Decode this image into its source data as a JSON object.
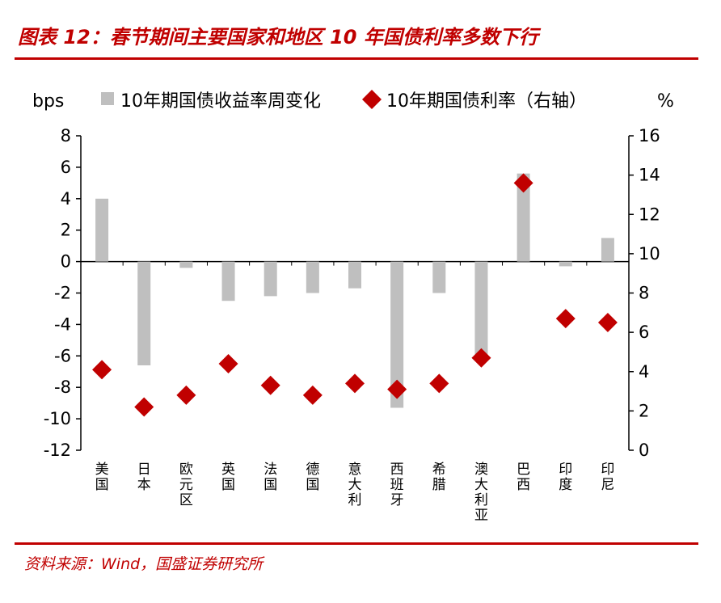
{
  "title": "图表 12：春节期间主要国家和地区 10 年国债利率多数下行",
  "source": "资料来源：Wind，国盛证券研究所",
  "colors": {
    "accent": "#c00000",
    "bar": "#bfbfbf",
    "marker": "#c00000"
  },
  "chart_data": {
    "type": "bar",
    "left_unit": "bps",
    "right_unit": "%",
    "categories": [
      "美国",
      "日本",
      "欧元区",
      "英国",
      "法国",
      "德国",
      "意大利",
      "西班牙",
      "希腊",
      "澳大利亚",
      "巴西",
      "印度",
      "印尼"
    ],
    "ylim_left": [
      -12,
      8
    ],
    "yticks_left": [
      8,
      6,
      4,
      2,
      0,
      -2,
      -4,
      -6,
      -8,
      -10,
      -12
    ],
    "ylim_right": [
      0,
      16
    ],
    "yticks_right": [
      16,
      14,
      12,
      10,
      8,
      6,
      4,
      2,
      0
    ],
    "series": [
      {
        "name": "10年期国债收益率周变化",
        "type": "bar",
        "axis": "left",
        "values": [
          4.0,
          -6.6,
          -0.4,
          -2.5,
          -2.2,
          -2.0,
          -1.7,
          -9.3,
          -2.0,
          -6.0,
          5.6,
          -0.3,
          1.5
        ]
      },
      {
        "name": "10年期国债利率（右轴）",
        "type": "scatter",
        "axis": "right",
        "values": [
          4.1,
          2.2,
          2.8,
          4.4,
          3.3,
          2.8,
          3.4,
          3.1,
          3.4,
          4.7,
          13.6,
          6.7,
          6.5
        ]
      }
    ]
  }
}
